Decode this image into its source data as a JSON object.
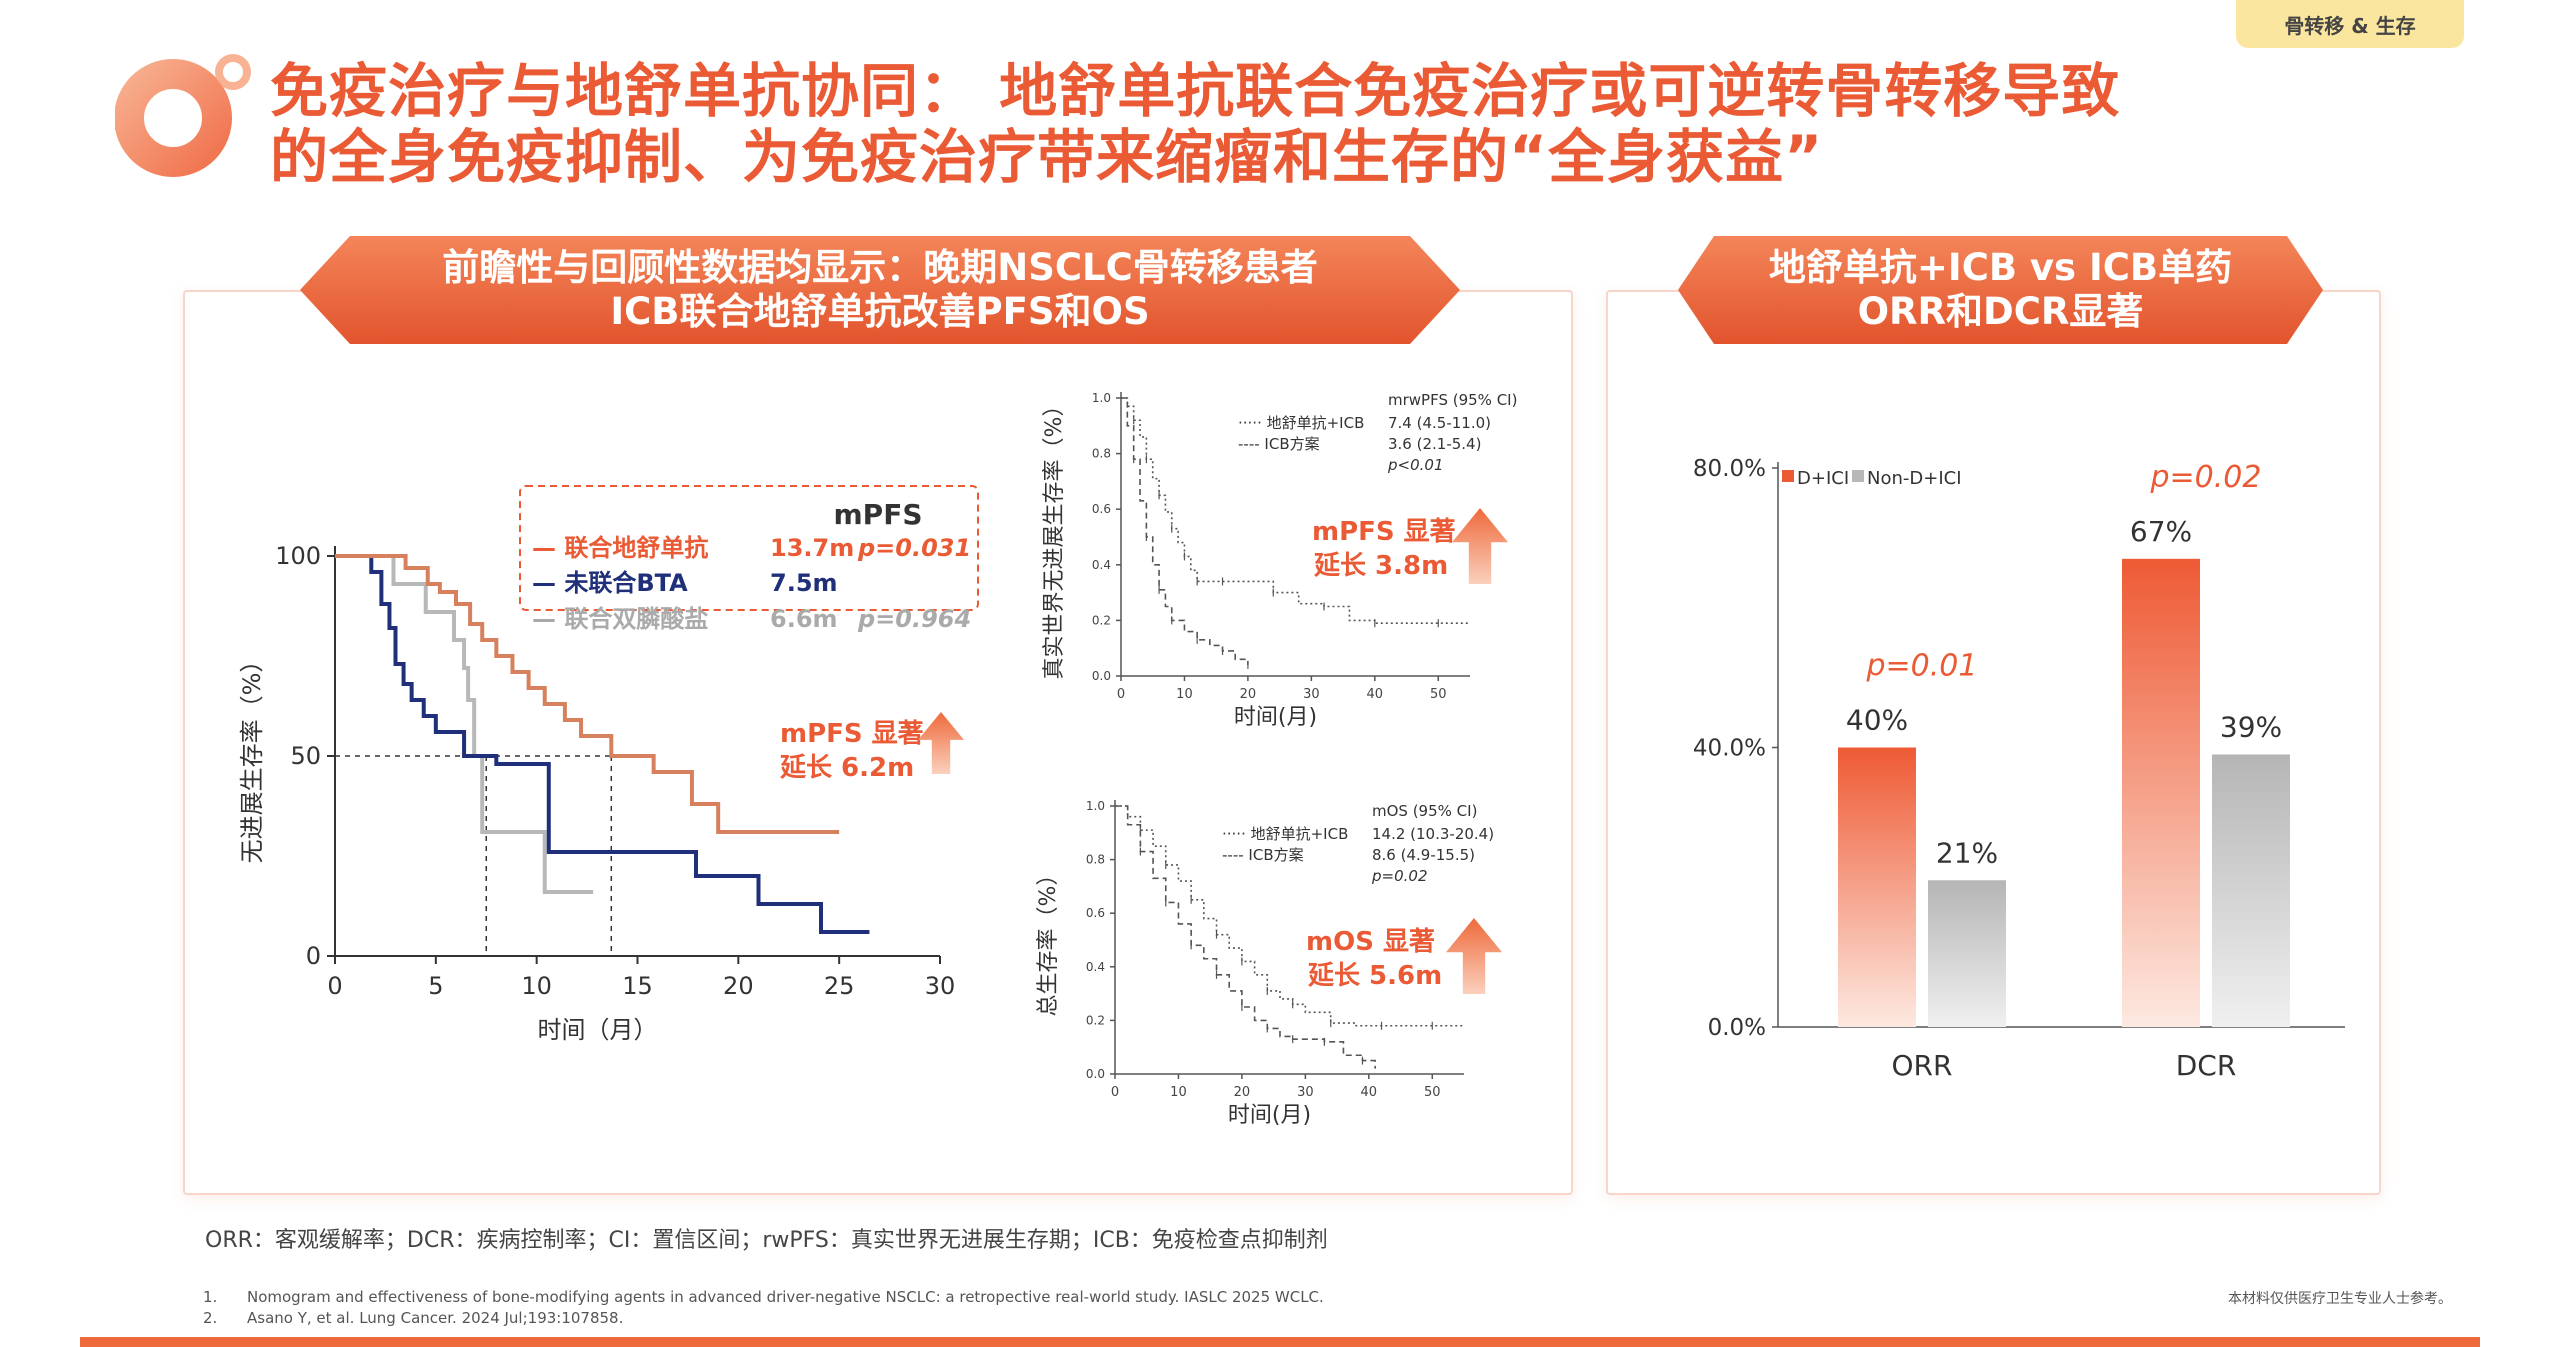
{
  "tag": "骨转移 & 生存",
  "title": {
    "line1": "免疫治疗与地舒单抗协同： 地舒单抗联合免疫治疗或可逆转骨转移导致",
    "line2": "的全身免疫抑制、为免疫治疗带来缩瘤和生存的“全身获益”"
  },
  "left_panel": {
    "header_line1": "前瞻性与回顾性数据均显示：晚期NSCLC骨转移患者",
    "header_line2": "ICB联合地舒单抗改善PFS和OS"
  },
  "right_panel": {
    "header_line1": "地舒单抗+ICB vs ICB单药",
    "header_line2": "ORR和DCR显著"
  },
  "footnote_abbr": "ORR：客观缓解率；DCR：疾病控制率；CI：置信区间；rwPFS：真实世界无进展生存期；ICB：免疫检查点抑制剂",
  "references": [
    {
      "num": "1.",
      "text": "Nomogram and effectiveness of bone-modifying agents in advanced driver-negative NSCLC: a retropective real-world study. IASLC 2025 WCLC."
    },
    {
      "num": "2.",
      "text": "Asano Y, et al. Lung Cancer. 2024 Jul;193:107858."
    }
  ],
  "disclaimer": "本材料仅供医疗卫生专业人士参考。",
  "colors": {
    "accent": "#ea5a34",
    "navy": "#1f2f7a",
    "gray": "#b8b8b8",
    "orange_line": "#d6805d"
  },
  "chart_data": [
    {
      "id": "km_mpfs",
      "type": "line",
      "xlabel": "时间（月）",
      "ylabel": "无进展生存率（%）",
      "xlim": [
        0,
        30
      ],
      "ylim": [
        0,
        100
      ],
      "xticks": [
        0,
        5,
        10,
        15,
        20,
        25,
        30
      ],
      "yticks": [
        0,
        50,
        100
      ],
      "legend_title": "mPFS",
      "series": [
        {
          "name": "联合地舒单抗",
          "median": "13.7m",
          "p": "p=0.031",
          "color": "#d6805d",
          "x": [
            0,
            2.8,
            3.5,
            4.6,
            5.2,
            6.0,
            6.7,
            7.3,
            8.0,
            8.8,
            9.6,
            10.4,
            11.4,
            12.2,
            13.7,
            15.8,
            17.7,
            19.0,
            25.0
          ],
          "y": [
            100,
            100,
            97,
            93,
            91,
            88,
            83,
            79,
            75,
            71,
            67,
            63,
            59,
            55,
            50,
            46,
            38,
            31,
            31
          ]
        },
        {
          "name": "未联合BTA",
          "median": "7.5m",
          "p": "",
          "color": "#1f2f7a",
          "x": [
            0,
            1.4,
            1.8,
            2.3,
            2.7,
            3.0,
            3.4,
            3.8,
            4.4,
            5.0,
            6.4,
            7.3,
            8.0,
            10.4,
            10.6,
            17.9,
            21.0,
            24.1,
            26.5
          ],
          "y": [
            100,
            100,
            96,
            88,
            82,
            73,
            68,
            64,
            60,
            56,
            50,
            50,
            48,
            48,
            26,
            20,
            13,
            6,
            6
          ]
        },
        {
          "name": "联合双膦酸盐",
          "median": "6.6m",
          "p": "p=0.964",
          "color": "#b8b8b8",
          "x": [
            0,
            1.8,
            2.9,
            4.5,
            5.6,
            5.9,
            6.4,
            6.6,
            6.9,
            7.3,
            10.4,
            12.8
          ],
          "y": [
            100,
            100,
            93,
            86,
            86,
            79,
            72,
            64,
            50,
            31,
            16,
            16
          ]
        }
      ],
      "annotation": [
        "mPFS 显著",
        "延长 6.2m"
      ]
    },
    {
      "id": "km_rwpfs",
      "type": "line",
      "xlabel": "时间(月)",
      "ylabel": "真实世界无进展生存率（%）",
      "xlim": [
        0,
        55
      ],
      "ylim": [
        0,
        1.0
      ],
      "xticks": [
        0,
        10,
        20,
        30,
        40,
        50
      ],
      "yticks": [
        0.0,
        0.2,
        0.4,
        0.6,
        0.8,
        1.0
      ],
      "legend_title": "mrwPFS (95% CI)",
      "series": [
        {
          "name": "地舒单抗+ICB",
          "stat": "7.4 (4.5-11.0)",
          "style": "dotted",
          "x": [
            0,
            1,
            2,
            3,
            4,
            5,
            6,
            7,
            8,
            9,
            10,
            11,
            12,
            14,
            16,
            20,
            24,
            28,
            32,
            36,
            40,
            45,
            50,
            55
          ],
          "y": [
            1.0,
            0.97,
            0.92,
            0.86,
            0.78,
            0.71,
            0.65,
            0.59,
            0.53,
            0.48,
            0.43,
            0.38,
            0.34,
            0.34,
            0.34,
            0.34,
            0.3,
            0.26,
            0.25,
            0.2,
            0.19,
            0.19,
            0.19,
            0.19
          ]
        },
        {
          "name": "ICB方案",
          "stat": "3.6 (2.1-5.4)",
          "style": "dashed",
          "x": [
            0,
            1,
            2,
            3,
            4,
            5,
            6,
            7,
            8,
            10,
            12,
            14,
            16,
            18,
            20
          ],
          "y": [
            1.0,
            0.9,
            0.78,
            0.63,
            0.5,
            0.4,
            0.31,
            0.25,
            0.2,
            0.16,
            0.13,
            0.11,
            0.09,
            0.06,
            0.04
          ]
        }
      ],
      "p": "p<0.01",
      "annotation": [
        "mPFS 显著",
        "延长 3.8m"
      ]
    },
    {
      "id": "km_os",
      "type": "line",
      "xlabel": "时间(月)",
      "ylabel": "总生存率（%）",
      "xlim": [
        0,
        55
      ],
      "ylim": [
        0,
        1.0
      ],
      "xticks": [
        0,
        10,
        20,
        30,
        40,
        50
      ],
      "yticks": [
        0.0,
        0.2,
        0.4,
        0.6,
        0.8,
        1.0
      ],
      "legend_title": "mOS (95% CI)",
      "series": [
        {
          "name": "地舒单抗+ICB",
          "stat": "14.2 (10.3-20.4)",
          "style": "dotted",
          "x": [
            0,
            2,
            4,
            6,
            8,
            10,
            12,
            14,
            16,
            18,
            20,
            22,
            24,
            26,
            28,
            30,
            34,
            38,
            42,
            46,
            50,
            55
          ],
          "y": [
            1.0,
            0.96,
            0.91,
            0.85,
            0.78,
            0.72,
            0.65,
            0.58,
            0.52,
            0.47,
            0.42,
            0.37,
            0.31,
            0.28,
            0.26,
            0.23,
            0.19,
            0.18,
            0.18,
            0.18,
            0.18,
            0.18
          ]
        },
        {
          "name": "ICB方案",
          "stat": "8.6 (4.9-15.5)",
          "style": "dashed",
          "x": [
            0,
            2,
            4,
            6,
            8,
            10,
            12,
            14,
            16,
            18,
            20,
            22,
            24,
            26,
            28,
            30,
            33,
            36,
            39,
            41
          ],
          "y": [
            1.0,
            0.93,
            0.83,
            0.73,
            0.64,
            0.56,
            0.48,
            0.43,
            0.37,
            0.31,
            0.25,
            0.2,
            0.17,
            0.14,
            0.13,
            0.13,
            0.12,
            0.07,
            0.05,
            0.02
          ]
        }
      ],
      "p": "p=0.02",
      "annotation": [
        "mOS 显著",
        "延长 5.6m"
      ]
    },
    {
      "id": "bar_orr_dcr",
      "type": "bar",
      "categories": [
        "ORR",
        "DCR"
      ],
      "ylim": [
        0,
        80
      ],
      "yticks": [
        "0.0%",
        "40.0%",
        "80.0%"
      ],
      "series": [
        {
          "name": "D+ICI",
          "values": [
            40,
            67
          ],
          "labels": [
            "40%",
            "67%"
          ],
          "color": "#ea5a34"
        },
        {
          "name": "Non-D+ICI",
          "values": [
            21,
            39
          ],
          "labels": [
            "21%",
            "39%"
          ],
          "color": "#b8b8b8"
        }
      ],
      "p_values": [
        "p=0.01",
        "p=0.02"
      ]
    }
  ]
}
